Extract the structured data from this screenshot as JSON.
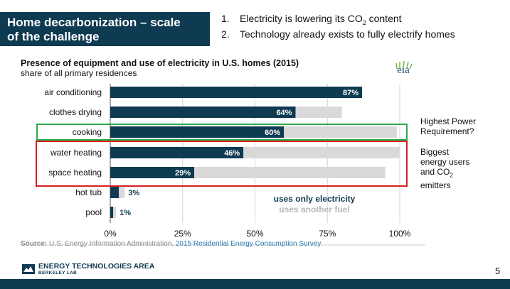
{
  "slide": {
    "title_line1": "Home decarbonization – scale",
    "title_line2": "of the challenge",
    "points": [
      {
        "num": "1.",
        "text_before": "Electricity is lowering its CO",
        "sub": "2",
        "text_after": " content"
      },
      {
        "num": "2.",
        "text_before": "Technology already exists to fully electrify homes",
        "sub": "",
        "text_after": ""
      }
    ],
    "page_number": "5",
    "logo": {
      "line1": "ENERGY TECHNOLOGIES AREA",
      "line2": "BERKELEY LAB"
    }
  },
  "chart_data": {
    "type": "bar",
    "orientation": "horizontal",
    "stacked": true,
    "title": "Presence of equipment and use of electricity in U.S. homes (2015)",
    "subtitle": "share of all primary residences",
    "categories": [
      "air conditioning",
      "clothes drying",
      "cooking",
      "water heating",
      "space heating",
      "hot tub",
      "pool"
    ],
    "series": [
      {
        "name": "uses only electricity",
        "color": "#0e3a52",
        "values": [
          87,
          64,
          60,
          46,
          29,
          3,
          1
        ]
      },
      {
        "name": "uses another fuel",
        "color": "#d9d9d9",
        "values": [
          0,
          16,
          39,
          54,
          66,
          2,
          1
        ]
      }
    ],
    "data_labels": [
      "87%",
      "64%",
      "60%",
      "46%",
      "29%",
      "3%",
      "1%"
    ],
    "x_ticks": [
      "0%",
      "25%",
      "50%",
      "75%",
      "100%"
    ],
    "xlim": [
      0,
      100
    ],
    "grid": true,
    "legend_position": "bottom-right",
    "eia_logo_text": "eia",
    "source_label": "Source:",
    "source_text": " U.S. Energy Information Administration, ",
    "source_link": "2015 Residential Energy Consumption Survey"
  },
  "annotations": {
    "green_note": {
      "line1": "Highest Power",
      "line2": "Requirement?"
    },
    "red_note": {
      "line1": "Biggest",
      "line2": "energy users",
      "line3_before": "and CO",
      "line3_sub": "2",
      "line4": "emitters"
    },
    "green_color": "#2ea84a",
    "red_color": "#d62020"
  }
}
